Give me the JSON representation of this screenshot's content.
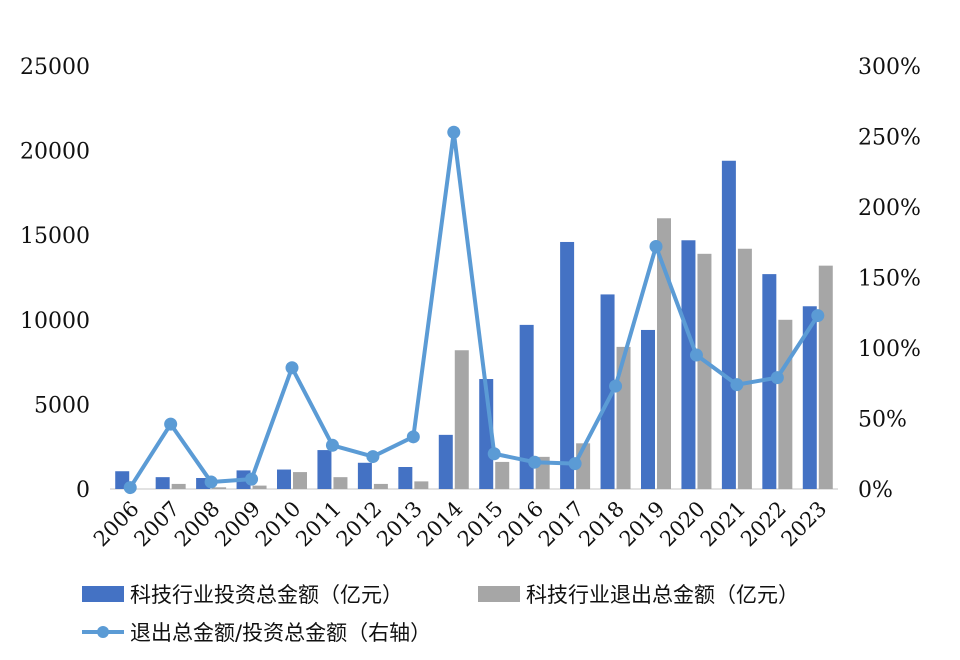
{
  "chart_data": {
    "type": "bar",
    "categories": [
      "2006",
      "2007",
      "2008",
      "2009",
      "2010",
      "2011",
      "2012",
      "2013",
      "2014",
      "2015",
      "2016",
      "2017",
      "2018",
      "2019",
      "2020",
      "2021",
      "2022",
      "2023"
    ],
    "series": [
      {
        "name": "科技行业投资总金额（亿元）",
        "type": "bar",
        "axis": "left",
        "color": "#4472C4",
        "values": [
          1050,
          700,
          650,
          1100,
          1150,
          2300,
          1550,
          1300,
          3200,
          6500,
          9700,
          14600,
          11500,
          9400,
          14700,
          19400,
          12700,
          10800
        ]
      },
      {
        "name": "科技行业退出总金额（亿元）",
        "type": "bar",
        "axis": "left",
        "color": "#A6A6A6",
        "values": [
          0,
          300,
          100,
          200,
          1000,
          700,
          300,
          450,
          8200,
          1600,
          1900,
          2700,
          8400,
          16000,
          13900,
          14200,
          10000,
          13200
        ]
      },
      {
        "name": "退出总金额/投资总金额（右轴）",
        "type": "line",
        "axis": "right",
        "color": "#5B9BD5",
        "values": [
          0.01,
          0.46,
          0.05,
          0.07,
          0.86,
          0.31,
          0.23,
          0.37,
          2.53,
          0.25,
          0.19,
          0.18,
          0.73,
          1.72,
          0.95,
          0.74,
          0.79,
          1.23
        ]
      }
    ],
    "y_left": {
      "min": 0,
      "max": 25000,
      "ticks": [
        "0",
        "5000",
        "10000",
        "15000",
        "20000",
        "25000"
      ]
    },
    "y_right": {
      "min": 0,
      "max": 3,
      "ticks": [
        "0%",
        "50%",
        "100%",
        "150%",
        "200%",
        "250%",
        "300%"
      ]
    },
    "grid": false,
    "legend_position": "bottom"
  }
}
